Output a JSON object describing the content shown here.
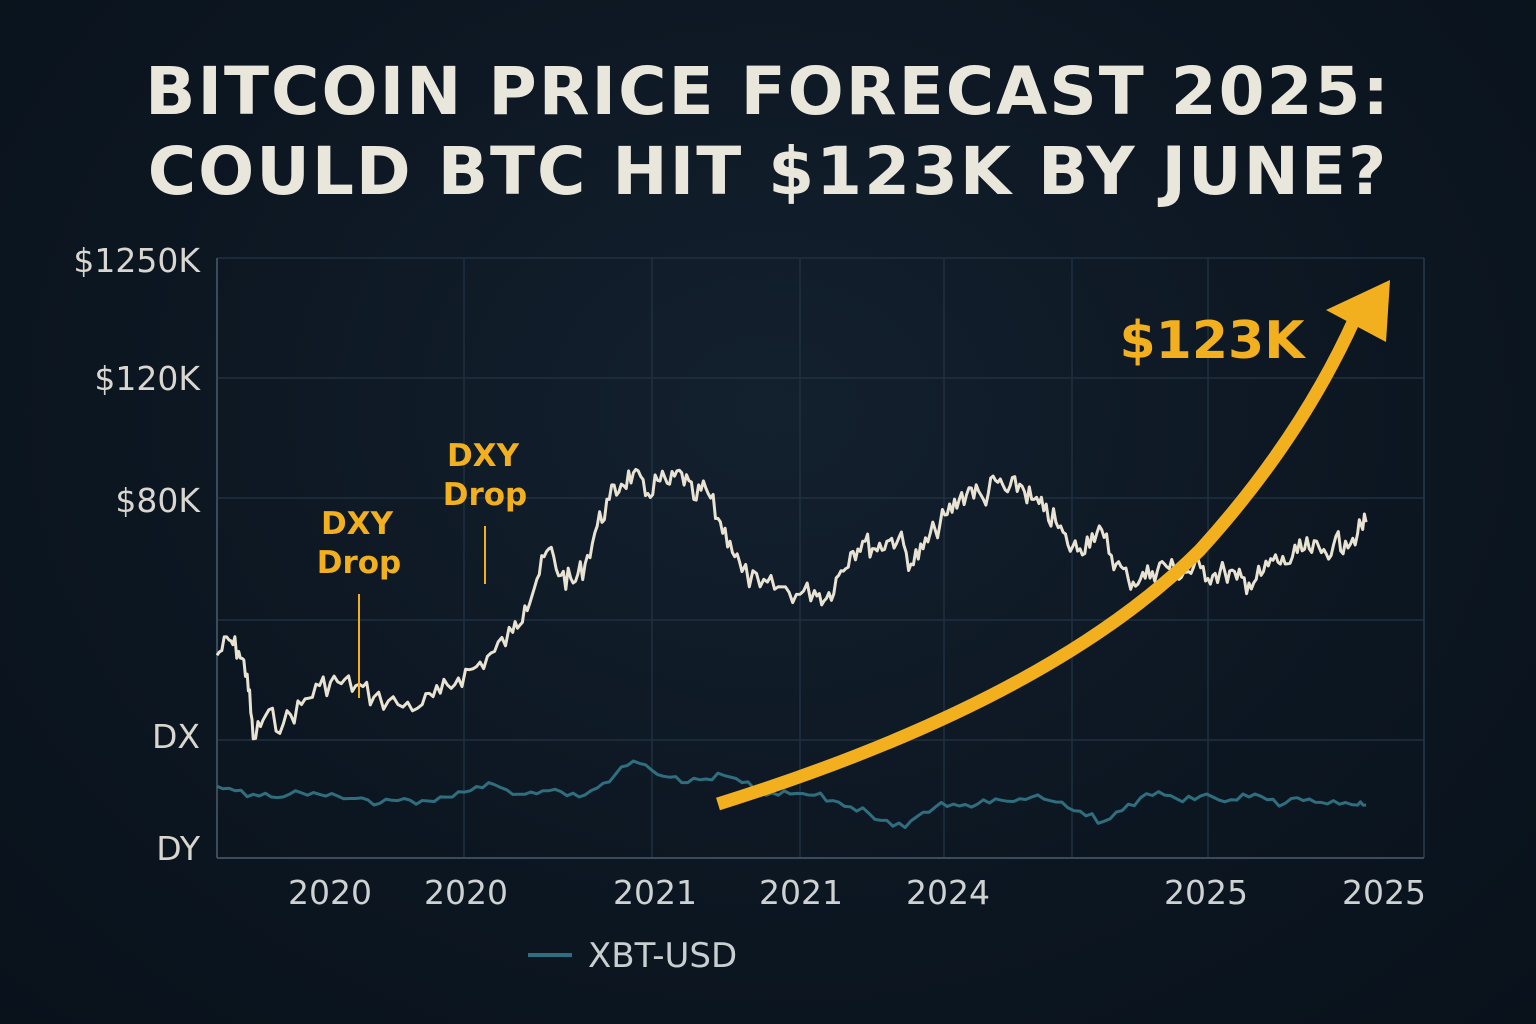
{
  "title": {
    "line1": "BITCOIN PRICE FORECAST 2025:",
    "line2": "COULD BTC HIT $123K BY JUNE?"
  },
  "colors": {
    "background": "#0c1621",
    "btc_line": "#e8e3d3",
    "dxy_line": "#2f6e7e",
    "accent": "#f2b01e",
    "grid": "#243445"
  },
  "chart_data": {
    "type": "line",
    "title": "BITCOIN PRICE FORECAST 2025: COULD BTC HIT $123K BY JUNE?",
    "y_ticks": [
      "$1250K",
      "$120K",
      "$80K",
      "DX",
      "DY"
    ],
    "x_ticks": [
      "2020",
      "2020",
      "2021",
      "2021",
      "2024",
      "2025",
      "2025"
    ],
    "grid": true,
    "legend": {
      "position": "bottom",
      "entries": [
        "XBT-USD"
      ]
    },
    "series": [
      {
        "role": "btc-price",
        "points": [
          [
            0.0,
            0.36
          ],
          [
            0.01,
            0.4
          ],
          [
            0.018,
            0.37
          ],
          [
            0.025,
            0.31
          ],
          [
            0.03,
            0.14
          ],
          [
            0.04,
            0.2
          ],
          [
            0.055,
            0.18
          ],
          [
            0.07,
            0.23
          ],
          [
            0.085,
            0.28
          ],
          [
            0.1,
            0.29
          ],
          [
            0.115,
            0.28
          ],
          [
            0.13,
            0.25
          ],
          [
            0.15,
            0.23
          ],
          [
            0.17,
            0.23
          ],
          [
            0.185,
            0.26
          ],
          [
            0.2,
            0.3
          ],
          [
            0.215,
            0.33
          ],
          [
            0.23,
            0.37
          ],
          [
            0.245,
            0.42
          ],
          [
            0.255,
            0.49
          ],
          [
            0.265,
            0.56
          ],
          [
            0.275,
            0.64
          ],
          [
            0.285,
            0.57
          ],
          [
            0.295,
            0.55
          ],
          [
            0.305,
            0.6
          ],
          [
            0.315,
            0.7
          ],
          [
            0.325,
            0.77
          ],
          [
            0.335,
            0.81
          ],
          [
            0.345,
            0.84
          ],
          [
            0.355,
            0.78
          ],
          [
            0.365,
            0.82
          ],
          [
            0.375,
            0.81
          ],
          [
            0.385,
            0.84
          ],
          [
            0.395,
            0.77
          ],
          [
            0.405,
            0.8
          ],
          [
            0.415,
            0.72
          ],
          [
            0.425,
            0.66
          ],
          [
            0.435,
            0.58
          ],
          [
            0.45,
            0.54
          ],
          [
            0.465,
            0.54
          ],
          [
            0.48,
            0.52
          ],
          [
            0.495,
            0.53
          ],
          [
            0.505,
            0.51
          ],
          [
            0.515,
            0.57
          ],
          [
            0.525,
            0.63
          ],
          [
            0.535,
            0.66
          ],
          [
            0.545,
            0.64
          ],
          [
            0.555,
            0.66
          ],
          [
            0.565,
            0.67
          ],
          [
            0.575,
            0.6
          ],
          [
            0.585,
            0.64
          ],
          [
            0.595,
            0.69
          ],
          [
            0.605,
            0.73
          ],
          [
            0.615,
            0.77
          ],
          [
            0.625,
            0.8
          ],
          [
            0.635,
            0.77
          ],
          [
            0.645,
            0.82
          ],
          [
            0.655,
            0.79
          ],
          [
            0.665,
            0.81
          ],
          [
            0.675,
            0.77
          ],
          [
            0.685,
            0.74
          ],
          [
            0.695,
            0.71
          ],
          [
            0.705,
            0.65
          ],
          [
            0.715,
            0.64
          ],
          [
            0.725,
            0.68
          ],
          [
            0.735,
            0.67
          ],
          [
            0.745,
            0.6
          ],
          [
            0.755,
            0.56
          ],
          [
            0.765,
            0.56
          ],
          [
            0.775,
            0.58
          ],
          [
            0.785,
            0.6
          ],
          [
            0.795,
            0.58
          ],
          [
            0.805,
            0.58
          ],
          [
            0.815,
            0.59
          ],
          [
            0.825,
            0.57
          ],
          [
            0.835,
            0.58
          ],
          [
            0.845,
            0.56
          ],
          [
            0.855,
            0.55
          ],
          [
            0.865,
            0.57
          ],
          [
            0.875,
            0.61
          ],
          [
            0.885,
            0.6
          ],
          [
            0.895,
            0.63
          ],
          [
            0.905,
            0.64
          ],
          [
            0.915,
            0.63
          ],
          [
            0.925,
            0.65
          ],
          [
            0.935,
            0.66
          ],
          [
            0.945,
            0.68
          ],
          [
            0.952,
            0.71
          ]
        ]
      },
      {
        "role": "dxy",
        "legend": "XBT-USD",
        "points": [
          [
            0.0,
            0.62
          ],
          [
            0.015,
            0.57
          ],
          [
            0.03,
            0.53
          ],
          [
            0.045,
            0.5
          ],
          [
            0.06,
            0.53
          ],
          [
            0.075,
            0.52
          ],
          [
            0.09,
            0.51
          ],
          [
            0.105,
            0.48
          ],
          [
            0.12,
            0.49
          ],
          [
            0.135,
            0.43
          ],
          [
            0.15,
            0.46
          ],
          [
            0.165,
            0.42
          ],
          [
            0.18,
            0.45
          ],
          [
            0.195,
            0.5
          ],
          [
            0.21,
            0.57
          ],
          [
            0.225,
            0.66
          ],
          [
            0.24,
            0.58
          ],
          [
            0.255,
            0.53
          ],
          [
            0.27,
            0.57
          ],
          [
            0.285,
            0.56
          ],
          [
            0.3,
            0.5
          ],
          [
            0.315,
            0.6
          ],
          [
            0.33,
            0.75
          ],
          [
            0.345,
            0.9
          ],
          [
            0.36,
            0.8
          ],
          [
            0.375,
            0.72
          ],
          [
            0.39,
            0.66
          ],
          [
            0.405,
            0.7
          ],
          [
            0.42,
            0.74
          ],
          [
            0.435,
            0.66
          ],
          [
            0.45,
            0.55
          ],
          [
            0.465,
            0.52
          ],
          [
            0.48,
            0.54
          ],
          [
            0.495,
            0.52
          ],
          [
            0.51,
            0.46
          ],
          [
            0.525,
            0.39
          ],
          [
            0.54,
            0.32
          ],
          [
            0.555,
            0.24
          ],
          [
            0.57,
            0.16
          ],
          [
            0.585,
            0.33
          ],
          [
            0.6,
            0.44
          ],
          [
            0.615,
            0.4
          ],
          [
            0.63,
            0.42
          ],
          [
            0.645,
            0.48
          ],
          [
            0.66,
            0.45
          ],
          [
            0.675,
            0.5
          ],
          [
            0.69,
            0.46
          ],
          [
            0.705,
            0.38
          ],
          [
            0.72,
            0.29
          ],
          [
            0.735,
            0.23
          ],
          [
            0.75,
            0.35
          ],
          [
            0.765,
            0.49
          ],
          [
            0.78,
            0.56
          ],
          [
            0.795,
            0.48
          ],
          [
            0.81,
            0.47
          ],
          [
            0.825,
            0.5
          ],
          [
            0.84,
            0.47
          ],
          [
            0.855,
            0.5
          ],
          [
            0.87,
            0.47
          ],
          [
            0.885,
            0.43
          ],
          [
            0.9,
            0.46
          ],
          [
            0.915,
            0.44
          ],
          [
            0.93,
            0.42
          ],
          [
            0.945,
            0.41
          ],
          [
            0.952,
            0.41
          ]
        ]
      }
    ],
    "annotations": [
      {
        "text_line1": "DXY",
        "text_line2": "Drop"
      },
      {
        "text_line1": "DXY",
        "text_line2": "Drop"
      }
    ],
    "forecast": {
      "label": "$123K",
      "arrow_start_x": "2021",
      "arrow_target": "$123K"
    }
  }
}
